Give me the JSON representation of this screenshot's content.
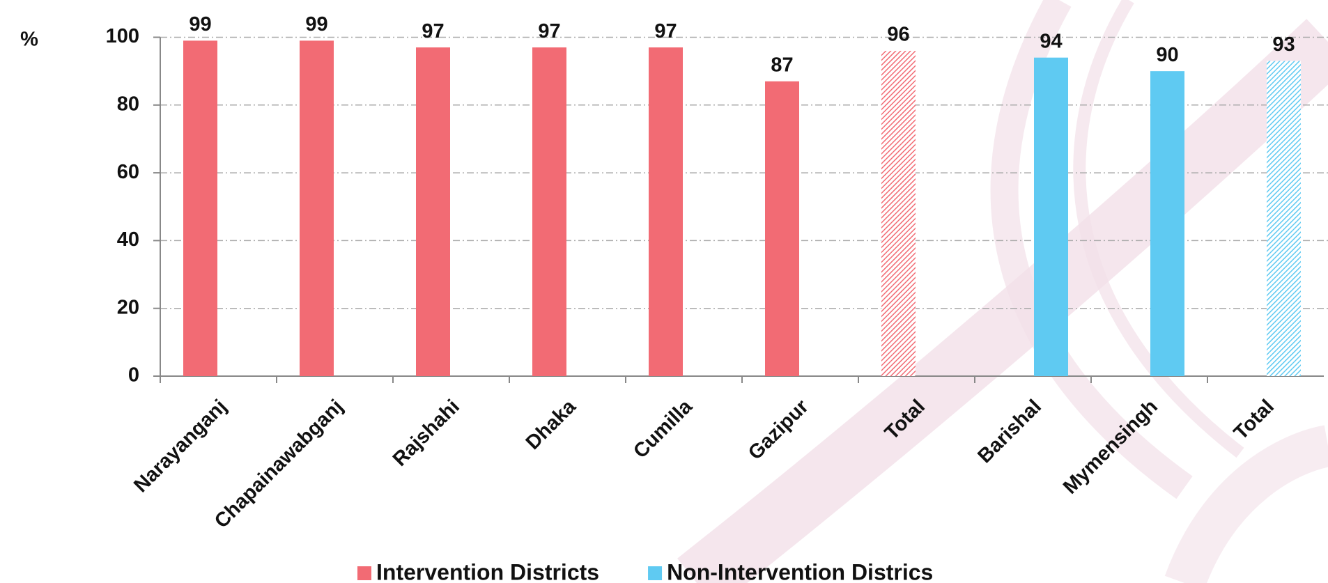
{
  "chart_data": {
    "type": "bar",
    "y_label": "%",
    "categories": [
      "Narayanganj",
      "Chapainawabganj",
      "Rajshahi",
      "Dhaka",
      "Cumilla",
      "Gazipur",
      "Total",
      "Barishal",
      "Mymensingh",
      "Total"
    ],
    "series": [
      {
        "name": "Intervention Districts",
        "color": "#f26b74",
        "values": [
          99,
          99,
          97,
          97,
          97,
          87,
          96,
          null,
          null,
          null
        ],
        "hatch": [
          false,
          false,
          false,
          false,
          false,
          false,
          true,
          false,
          false,
          false
        ]
      },
      {
        "name": "Non-Intervention Districs",
        "color": "#5fcaf2",
        "values": [
          null,
          null,
          null,
          null,
          null,
          null,
          null,
          94,
          90,
          93
        ],
        "hatch": [
          false,
          false,
          false,
          false,
          false,
          false,
          false,
          false,
          false,
          true
        ]
      }
    ],
    "ylim": [
      0,
      100
    ],
    "yticks": [
      0,
      20,
      40,
      60,
      80,
      100
    ],
    "grid": true,
    "legend": "bottom"
  }
}
